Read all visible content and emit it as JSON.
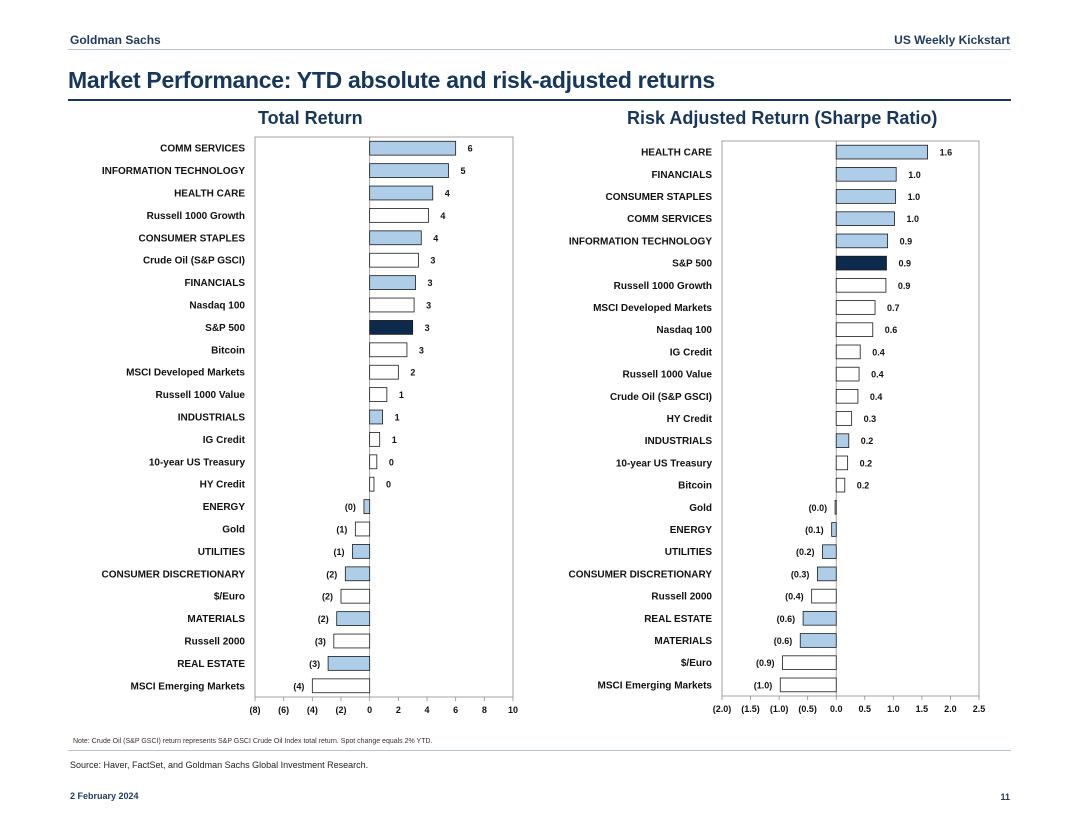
{
  "header": {
    "left": "Goldman Sachs",
    "right": "US Weekly Kickstart"
  },
  "title": "Market Performance: YTD absolute and risk-adjusted returns",
  "colors": {
    "sector": "#aecde9",
    "highlight": "#0d2a4d",
    "plain": "#ffffff",
    "stroke": "#1a1a1a"
  },
  "chart_data": [
    {
      "type": "bar",
      "orientation": "horizontal",
      "title": "Total Return",
      "xlim": [
        -8,
        10
      ],
      "ticks": [
        -8,
        -6,
        -4,
        -2,
        0,
        2,
        4,
        6,
        8,
        10
      ],
      "tick_labels": [
        "(8)",
        "(6)",
        "(4)",
        "(2)",
        "0",
        "2",
        "4",
        "6",
        "8",
        "10"
      ],
      "categories": [
        "COMM SERVICES",
        "INFORMATION TECHNOLOGY",
        "HEALTH CARE",
        "Russell 1000 Growth",
        "CONSUMER STAPLES",
        "Crude Oil (S&P GSCI)",
        "FINANCIALS",
        "Nasdaq 100",
        "S&P 500",
        "Bitcoin",
        "MSCI Developed Markets",
        "Russell 1000 Value",
        "INDUSTRIALS",
        "IG Credit",
        "10-year US Treasury",
        "HY Credit",
        "ENERGY",
        "Gold",
        "UTILITIES",
        "CONSUMER DISCRETIONARY",
        "$/Euro",
        "MATERIALS",
        "Russell 2000",
        "REAL ESTATE",
        "MSCI Emerging Markets"
      ],
      "values": [
        6.0,
        5.5,
        4.4,
        4.1,
        3.6,
        3.4,
        3.2,
        3.1,
        3.0,
        2.6,
        2.0,
        1.2,
        0.9,
        0.7,
        0.5,
        0.3,
        -0.4,
        -1.0,
        -1.2,
        -1.7,
        -2.0,
        -2.3,
        -2.5,
        -2.9,
        -4.0
      ],
      "data_labels": [
        "6",
        "5",
        "4",
        "4",
        "4",
        "3",
        "3",
        "3",
        "3",
        "3",
        "2",
        "1",
        "1",
        "1",
        "0",
        "0",
        "(0)",
        "(1)",
        "(1)",
        "(2)",
        "(2)",
        "(2)",
        "(3)",
        "(3)",
        "(4)"
      ],
      "kinds": [
        "sector",
        "sector",
        "sector",
        "plain",
        "sector",
        "plain",
        "sector",
        "plain",
        "highlight",
        "plain",
        "plain",
        "plain",
        "sector",
        "plain",
        "plain",
        "plain",
        "sector",
        "plain",
        "sector",
        "sector",
        "plain",
        "sector",
        "plain",
        "sector",
        "plain"
      ]
    },
    {
      "type": "bar",
      "orientation": "horizontal",
      "title": "Risk Adjusted Return (Sharpe Ratio)",
      "xlim": [
        -2.0,
        2.5
      ],
      "ticks": [
        -2.0,
        -1.5,
        -1.0,
        -0.5,
        0.0,
        0.5,
        1.0,
        1.5,
        2.0,
        2.5
      ],
      "tick_labels": [
        "(2.0)",
        "(1.5)",
        "(1.0)",
        "(0.5)",
        "0.0",
        "0.5",
        "1.0",
        "1.5",
        "2.0",
        "2.5"
      ],
      "categories": [
        "HEALTH CARE",
        "FINANCIALS",
        "CONSUMER STAPLES",
        "COMM SERVICES",
        "INFORMATION TECHNOLOGY",
        "S&P 500",
        "Russell 1000 Growth",
        "MSCI Developed Markets",
        "Nasdaq 100",
        "IG Credit",
        "Russell 1000 Value",
        "Crude Oil (S&P GSCI)",
        "HY Credit",
        "INDUSTRIALS",
        "10-year US Treasury",
        "Bitcoin",
        "Gold",
        "ENERGY",
        "UTILITIES",
        "CONSUMER DISCRETIONARY",
        "Russell 2000",
        "REAL ESTATE",
        "MATERIALS",
        "$/Euro",
        "MSCI Emerging Markets"
      ],
      "values": [
        1.6,
        1.05,
        1.04,
        1.02,
        0.9,
        0.88,
        0.87,
        0.68,
        0.64,
        0.42,
        0.4,
        0.38,
        0.27,
        0.22,
        0.2,
        0.15,
        -0.02,
        -0.08,
        -0.24,
        -0.33,
        -0.43,
        -0.58,
        -0.63,
        -0.94,
        -0.98
      ],
      "data_labels": [
        "1.6",
        "1.0",
        "1.0",
        "1.0",
        "0.9",
        "0.9",
        "0.9",
        "0.7",
        "0.6",
        "0.4",
        "0.4",
        "0.4",
        "0.3",
        "0.2",
        "0.2",
        "0.2",
        "(0.0)",
        "(0.1)",
        "(0.2)",
        "(0.3)",
        "(0.4)",
        "(0.6)",
        "(0.6)",
        "(0.9)",
        "(1.0)"
      ],
      "kinds": [
        "sector",
        "sector",
        "sector",
        "sector",
        "sector",
        "highlight",
        "plain",
        "plain",
        "plain",
        "plain",
        "plain",
        "plain",
        "plain",
        "sector",
        "plain",
        "plain",
        "plain",
        "sector",
        "sector",
        "sector",
        "plain",
        "sector",
        "sector",
        "plain",
        "plain"
      ]
    }
  ],
  "note": "Note: Crude Oil (S&P GSCI) return represents S&P GSCI Crude Oil Index total return. Spot change equals 2% YTD.",
  "source": "Source: Haver, FactSet, and Goldman Sachs Global Investment Research.",
  "footer": {
    "date": "2 February 2024",
    "page": "11"
  }
}
